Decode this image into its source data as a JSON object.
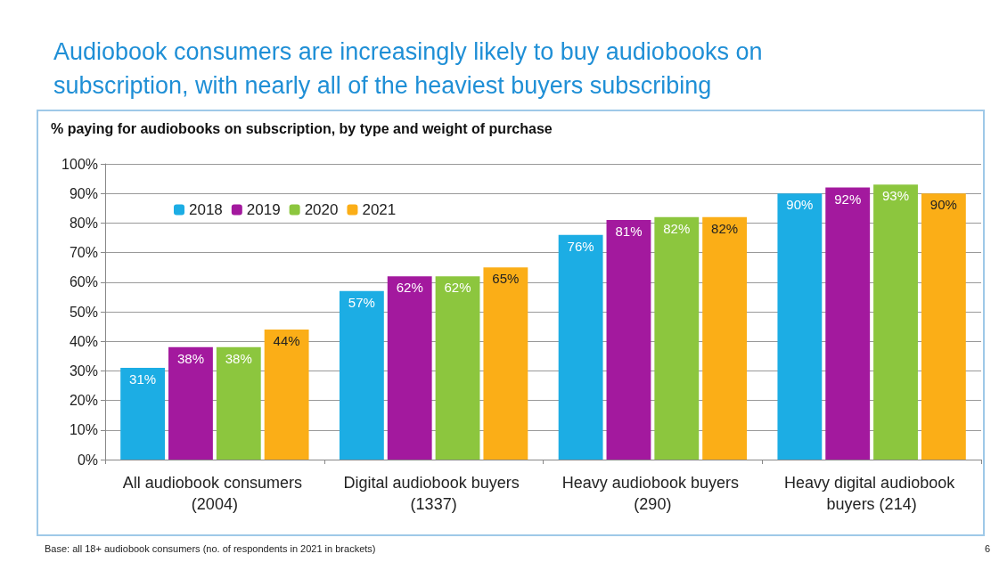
{
  "chart_data": {
    "type": "bar",
    "title": "Audiobook consumers are increasingly likely to buy audiobooks on subscription, with nearly all of the heaviest buyers subscribing",
    "subtitle": "% paying for audiobooks on subscription, by type and weight of purchase",
    "categories": [
      "All audiobook consumers (2004)",
      "Digital audiobook buyers (1337)",
      "Heavy audiobook buyers (290)",
      "Heavy digital audiobook buyers (214)"
    ],
    "series": [
      {
        "name": "2018",
        "color": "#1cade4",
        "values": [
          31,
          57,
          76,
          90
        ],
        "value_labels": [
          "31%",
          "57%",
          "76%",
          "90%"
        ]
      },
      {
        "name": "2019",
        "color": "#a3199e",
        "values": [
          38,
          62,
          81,
          92
        ],
        "value_labels": [
          "38%",
          "62%",
          "81%",
          "92%"
        ]
      },
      {
        "name": "2020",
        "color": "#8cc63e",
        "values": [
          38,
          62,
          82,
          93
        ],
        "value_labels": [
          "38%",
          "62%",
          "82%",
          "93%"
        ]
      },
      {
        "name": "2021",
        "color": "#fbae17",
        "values": [
          44,
          65,
          82,
          90
        ],
        "value_labels": [
          "44%",
          "65%",
          "82%",
          "90%"
        ]
      }
    ],
    "ylim": [
      0,
      100
    ],
    "yticks": [
      {
        "value": 0,
        "label": "0%"
      },
      {
        "value": 10,
        "label": "10%"
      },
      {
        "value": 20,
        "label": "20%"
      },
      {
        "value": 30,
        "label": "30%"
      },
      {
        "value": 40,
        "label": "40%"
      },
      {
        "value": 50,
        "label": "50%"
      },
      {
        "value": 60,
        "label": "60%"
      },
      {
        "value": 70,
        "label": "70%"
      },
      {
        "value": 80,
        "label": "80%"
      },
      {
        "value": 90,
        "label": "90%"
      },
      {
        "value": 100,
        "label": "100%"
      }
    ],
    "grid": "y",
    "legend": "top left",
    "annotations": [
      "Base: all 18+ audiobook consumers (no. of respondents in 2021 in brackets)",
      "6"
    ]
  }
}
